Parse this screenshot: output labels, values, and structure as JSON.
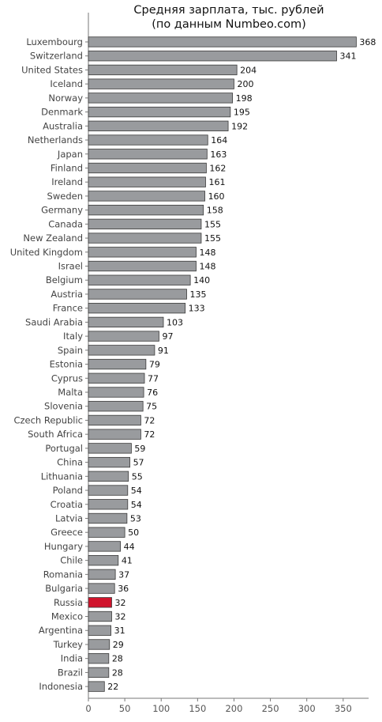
{
  "chart_data": {
    "type": "bar",
    "orientation": "horizontal",
    "title_lines": [
      "Средняя зарплата, тыс. рублей",
      "(по данным Numbeo.com)"
    ],
    "categories": [
      "Luxembourg",
      "Switzerland",
      "United States",
      "Iceland",
      "Norway",
      "Denmark",
      "Australia",
      "Netherlands",
      "Japan",
      "Finland",
      "Ireland",
      "Sweden",
      "Germany",
      "Canada",
      "New Zealand",
      "United Kingdom",
      "Israel",
      "Belgium",
      "Austria",
      "France",
      "Saudi Arabia",
      "Italy",
      "Spain",
      "Estonia",
      "Cyprus",
      "Malta",
      "Slovenia",
      "Czech Republic",
      "South Africa",
      "Portugal",
      "China",
      "Lithuania",
      "Poland",
      "Croatia",
      "Latvia",
      "Greece",
      "Hungary",
      "Chile",
      "Romania",
      "Bulgaria",
      "Russia",
      "Mexico",
      "Argentina",
      "Turkey",
      "India",
      "Brazil",
      "Indonesia"
    ],
    "values": [
      368,
      341,
      204,
      200,
      198,
      195,
      192,
      164,
      163,
      162,
      161,
      160,
      158,
      155,
      155,
      148,
      148,
      140,
      135,
      133,
      103,
      97,
      91,
      79,
      77,
      76,
      75,
      72,
      72,
      59,
      57,
      55,
      54,
      54,
      53,
      50,
      44,
      41,
      37,
      36,
      32,
      32,
      31,
      29,
      28,
      28,
      22
    ],
    "xlim": [
      0,
      385
    ],
    "xticks": [
      0,
      50,
      100,
      150,
      200,
      250,
      300,
      350
    ],
    "highlight": "Russia",
    "colors": {
      "bar": "#999b9e",
      "highlight": "#d0142c",
      "edge": "#3a3a3a"
    },
    "grid": false,
    "legend": "none"
  }
}
